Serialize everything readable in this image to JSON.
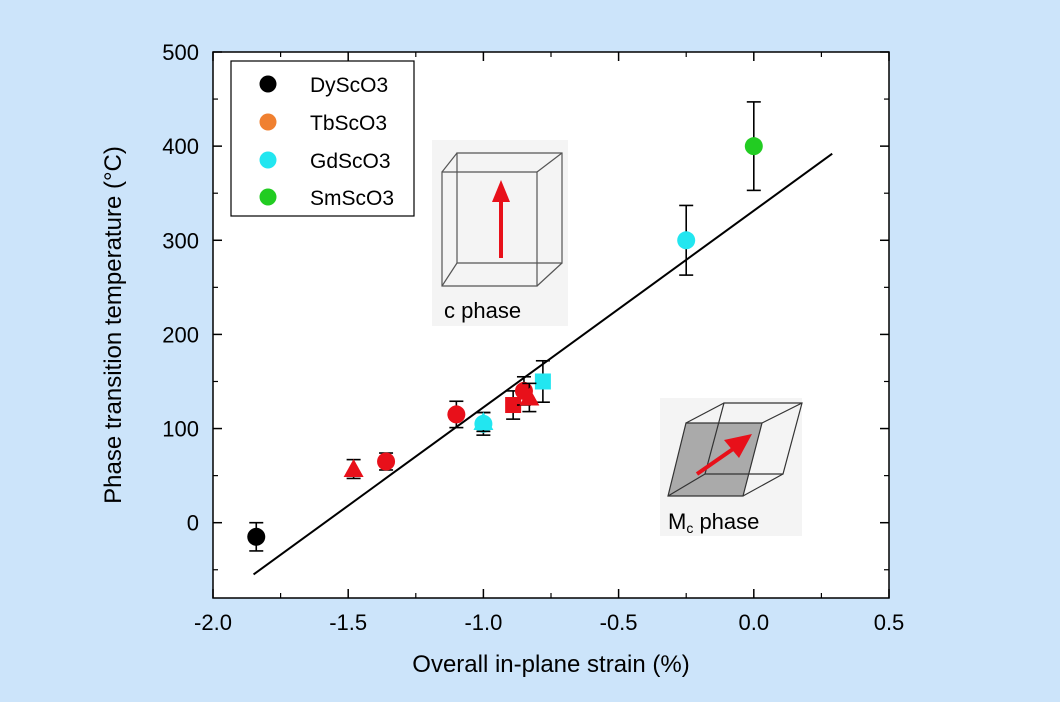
{
  "background_color": "#cce4fa",
  "chart_data": {
    "type": "scatter",
    "xlabel": "Overall in-plane strain (%)",
    "ylabel": "Phase transition temperature (°C)",
    "xlim": [
      -2.0,
      0.5
    ],
    "ylim": [
      -80,
      500
    ],
    "x_ticks": [
      -2.0,
      -1.5,
      -1.0,
      -0.5,
      0.0,
      0.5
    ],
    "x_tick_labels": [
      "-2.0",
      "-1.5",
      "-1.0",
      "-0.5",
      "0.0",
      "0.5"
    ],
    "y_ticks": [
      0,
      100,
      200,
      300,
      400,
      500
    ],
    "y_tick_labels": [
      "0",
      "100",
      "200",
      "300",
      "400",
      "500"
    ],
    "grid": false,
    "legend_position": "top-left",
    "series": [
      {
        "name": "DyScO3",
        "color": "#000000",
        "points": [
          {
            "x": -1.84,
            "y": -15,
            "err": 15,
            "marker": "circle"
          }
        ]
      },
      {
        "name": "TbScO3",
        "color": "#f08030",
        "points": []
      },
      {
        "name": "GdScO3",
        "color": "#22e6f0",
        "points": [
          {
            "x": -0.25,
            "y": 300,
            "err": 37,
            "marker": "circle"
          },
          {
            "x": -1.0,
            "y": 105,
            "err": 12,
            "marker": "circle"
          },
          {
            "x": -1.0,
            "y": 107,
            "err": 10,
            "marker": "triangle"
          },
          {
            "x": -0.78,
            "y": 150,
            "err": 22,
            "marker": "square"
          }
        ]
      },
      {
        "name": "SmScO3",
        "color": "#22cc22",
        "points": [
          {
            "x": 0.0,
            "y": 400,
            "err": 47,
            "marker": "circle"
          }
        ]
      },
      {
        "name": "",
        "color": "#e8101a",
        "points": [
          {
            "x": -1.48,
            "y": 57,
            "err": 10,
            "marker": "triangle"
          },
          {
            "x": -1.36,
            "y": 65,
            "err": 9,
            "marker": "circle"
          },
          {
            "x": -1.1,
            "y": 115,
            "err": 14,
            "marker": "circle"
          },
          {
            "x": -0.89,
            "y": 125,
            "err": 15,
            "marker": "square"
          },
          {
            "x": -0.85,
            "y": 140,
            "err": 15,
            "marker": "circle"
          },
          {
            "x": -0.83,
            "y": 133,
            "err": 15,
            "marker": "triangle"
          }
        ]
      }
    ],
    "fit_line": {
      "x": [
        -1.85,
        0.29
      ],
      "y": [
        -55,
        392
      ],
      "color": "#000000"
    },
    "insets": [
      {
        "label": "c phase",
        "phase": "c"
      },
      {
        "label_main": "M",
        "label_sub": "c",
        "label_rest": " phase",
        "phase": "Mc"
      }
    ]
  }
}
